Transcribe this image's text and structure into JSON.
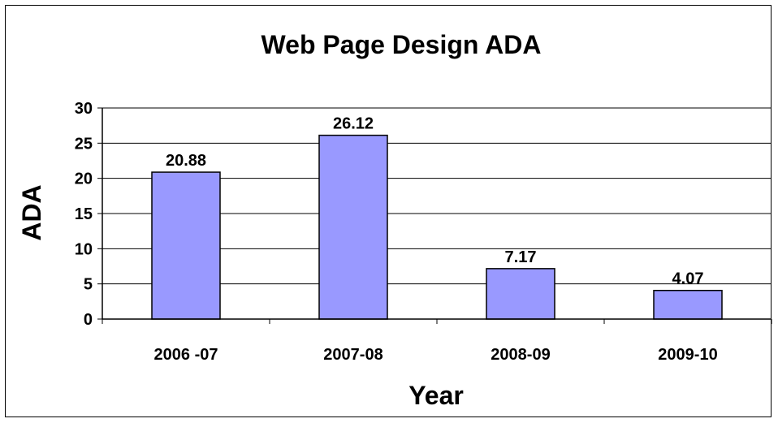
{
  "chart_data": {
    "type": "bar",
    "title": "Web Page Design ADA",
    "xlabel": "Year",
    "ylabel": "ADA",
    "categories": [
      "2006 -07",
      "2007-08",
      "2008-09",
      "2009-10"
    ],
    "values": [
      20.88,
      26.12,
      7.17,
      4.07
    ],
    "data_labels": [
      "20.88",
      "26.12",
      "7.17",
      "4.07"
    ],
    "ylim": [
      0,
      30
    ],
    "yticks": [
      0,
      5,
      10,
      15,
      20,
      25,
      30
    ],
    "ytick_labels": [
      "0",
      "5",
      "10",
      "15",
      "20",
      "25",
      "30"
    ],
    "grid": true,
    "legend": "none",
    "colors": {
      "bar": "#9999FF",
      "bar_border": "#000000",
      "grid": "#000000"
    }
  }
}
